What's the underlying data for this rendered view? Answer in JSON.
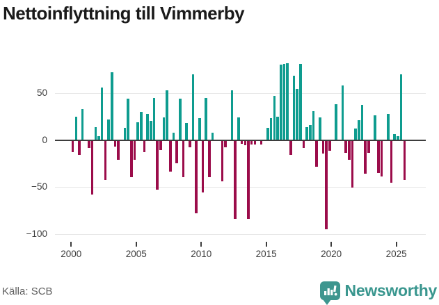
{
  "title": "Nettoinflyttning till Vimmerby",
  "footer": {
    "source_label": "Källa: SCB",
    "brand": "Newsworthy"
  },
  "colors": {
    "positive_bar": "#0e9c8f",
    "negative_bar": "#9b0c4a",
    "axis_line": "#3d3d3d",
    "gridline": "#e7e7e7",
    "tick_label": "#3b3b3b",
    "brand_teal": "#3e968f"
  },
  "chart_data": {
    "type": "bar",
    "title": "Nettoinflyttning till Vimmerby",
    "x_unit": "quarter",
    "start_year": 2000,
    "start_quarter": 1,
    "end_label": "2025Q3",
    "xlabel": "",
    "ylabel": "",
    "ylim": [
      -105,
      95
    ],
    "y_ticks": [
      50,
      0,
      -50,
      -100
    ],
    "y_tick_labels": [
      "50",
      "0",
      "−50",
      "−100"
    ],
    "x_tick_years": [
      2000,
      2005,
      2010,
      2015,
      2020,
      2025
    ],
    "x_tick_labels": [
      "2000",
      "2005",
      "2010",
      "2015",
      "2020",
      "2025"
    ],
    "grid": "horizontal-only",
    "legend": "none",
    "values": [
      -12,
      25,
      -15,
      33,
      0,
      -8,
      -57,
      14,
      4,
      56,
      -42,
      22,
      72,
      -6,
      -20,
      0,
      13,
      44,
      -39,
      -20,
      19,
      30,
      -12,
      28,
      20,
      45,
      -52,
      -10,
      24,
      53,
      -33,
      8,
      -24,
      44,
      -39,
      18,
      -7,
      70,
      -77,
      23,
      -55,
      45,
      -39,
      8,
      0,
      0,
      -43,
      -7,
      0,
      53,
      -83,
      24,
      -3,
      -5,
      -83,
      -4,
      -4,
      0,
      -4,
      0,
      13,
      23,
      47,
      25,
      80,
      81,
      82,
      -15,
      68,
      54,
      81,
      -8,
      14,
      16,
      31,
      -28,
      24,
      -14,
      -94,
      -11,
      0,
      38,
      0,
      58,
      -13,
      -20,
      -50,
      12,
      21,
      37,
      -35,
      -13,
      0,
      26,
      -34,
      -38,
      0,
      28,
      -45,
      6,
      4,
      70,
      -42
    ]
  }
}
